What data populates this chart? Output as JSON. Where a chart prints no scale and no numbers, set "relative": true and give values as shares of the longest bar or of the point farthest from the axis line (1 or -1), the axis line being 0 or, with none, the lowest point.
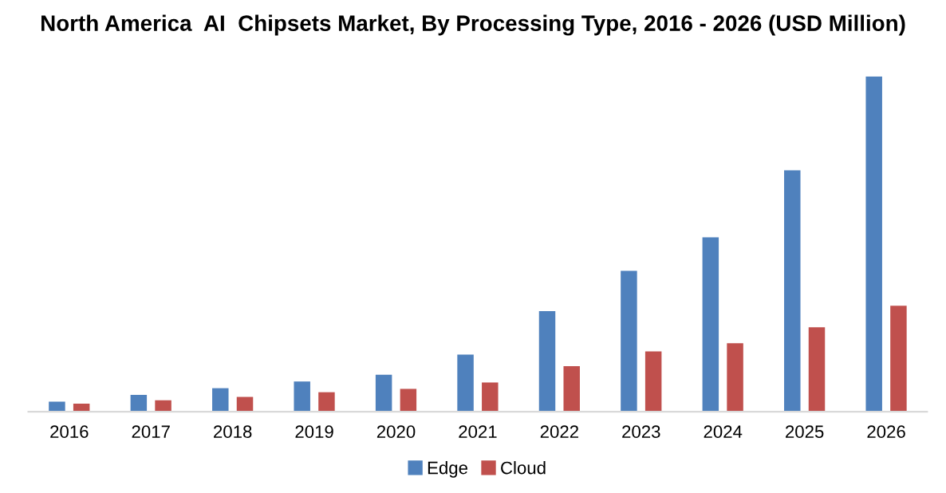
{
  "chart_data": {
    "type": "bar",
    "title": "North America  AI  Chipsets Market, By Processing Type, 2016 - 2026 (USD Million)",
    "categories": [
      "2016",
      "2017",
      "2018",
      "2019",
      "2020",
      "2021",
      "2022",
      "2023",
      "2024",
      "2025",
      "2026"
    ],
    "relative": true,
    "legend": "bottom",
    "grid": false,
    "series": [
      {
        "name": "Edge",
        "color": "#4f81bd",
        "values": [
          0.03,
          0.05,
          0.07,
          0.09,
          0.11,
          0.17,
          0.3,
          0.42,
          0.52,
          0.72,
          1
        ]
      },
      {
        "name": "Cloud",
        "color": "#c0504d",
        "values": [
          0.024,
          0.034,
          0.044,
          0.058,
          0.068,
          0.087,
          0.136,
          0.18,
          0.204,
          0.252,
          0.316
        ]
      }
    ]
  }
}
